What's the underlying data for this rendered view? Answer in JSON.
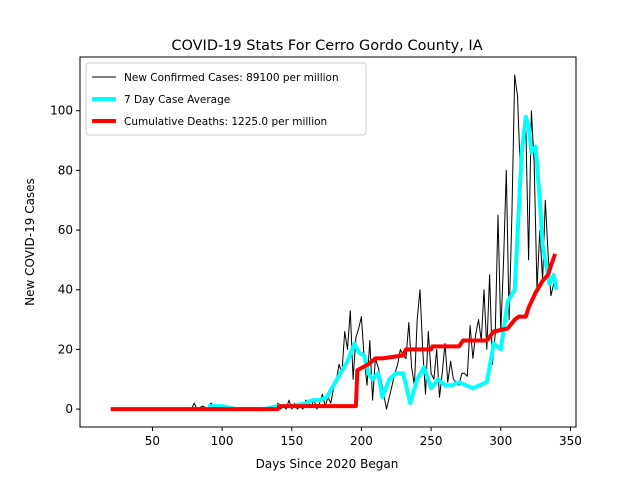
{
  "chart_data": {
    "type": "line",
    "title": "COVID-19 Stats For Cerro Gordo County, IA",
    "xlabel": "Days Since 2020 Began",
    "ylabel": "New COVID-19 Cases",
    "xlim": [
      -2,
      354
    ],
    "ylim": [
      -6,
      118
    ],
    "xticks": [
      50,
      100,
      150,
      200,
      250,
      300,
      350
    ],
    "yticks": [
      0,
      20,
      40,
      60,
      80,
      100
    ],
    "grid": false,
    "legend_position": "top-left",
    "series": [
      {
        "name": "New Confirmed Cases: 89100 per million",
        "color": "#000000",
        "style": "thin",
        "x": [
          20,
          40,
          60,
          78,
          80,
          82,
          86,
          90,
          92,
          94,
          96,
          98,
          100,
          104,
          110,
          120,
          130,
          138,
          140,
          142,
          144,
          146,
          148,
          150,
          152,
          154,
          156,
          158,
          160,
          162,
          164,
          166,
          168,
          170,
          172,
          174,
          176,
          178,
          180,
          182,
          184,
          186,
          188,
          190,
          192,
          194,
          196,
          198,
          200,
          202,
          204,
          206,
          208,
          210,
          212,
          214,
          216,
          218,
          220,
          222,
          224,
          226,
          228,
          230,
          232,
          234,
          236,
          238,
          240,
          242,
          244,
          246,
          248,
          250,
          252,
          254,
          256,
          258,
          260,
          262,
          264,
          266,
          268,
          270,
          272,
          274,
          276,
          278,
          280,
          282,
          284,
          286,
          288,
          290,
          292,
          294,
          296,
          298,
          300,
          302,
          304,
          306,
          308,
          310,
          312,
          314,
          316,
          318,
          320,
          322,
          324,
          326,
          328,
          330,
          332,
          334,
          336,
          338
        ],
        "y": [
          0,
          0,
          0,
          0,
          2,
          0,
          1,
          0,
          2,
          1,
          0,
          1,
          0,
          0,
          0,
          0,
          0,
          0,
          2,
          0,
          1,
          0,
          3,
          0,
          2,
          0,
          1,
          0,
          3,
          2,
          1,
          3,
          0,
          2,
          5,
          1,
          4,
          2,
          7,
          10,
          15,
          12,
          26,
          20,
          33,
          10,
          24,
          27,
          31,
          17,
          8,
          23,
          3,
          17,
          14,
          10,
          5,
          0,
          4,
          8,
          12,
          15,
          20,
          18,
          17,
          29,
          14,
          8,
          30,
          40,
          20,
          5,
          26,
          12,
          10,
          20,
          4,
          12,
          22,
          9,
          16,
          10,
          9,
          8,
          12,
          12,
          11,
          28,
          17,
          25,
          30,
          23,
          40,
          20,
          45,
          15,
          25,
          65,
          26,
          50,
          80,
          30,
          65,
          112,
          105,
          80,
          92,
          95,
          50,
          100,
          82,
          40,
          60,
          43,
          70,
          52,
          38,
          42
        ]
      },
      {
        "name": "7 Day Case Average",
        "color": "#00ffff",
        "style": "thick",
        "x": [
          90,
          100,
          110,
          120,
          130,
          140,
          150,
          160,
          165,
          170,
          175,
          180,
          185,
          190,
          195,
          198,
          202,
          205,
          208,
          212,
          215,
          220,
          225,
          230,
          235,
          240,
          245,
          250,
          255,
          260,
          265,
          270,
          275,
          280,
          285,
          290,
          295,
          300,
          305,
          310,
          315,
          318,
          320,
          322,
          325,
          328,
          330,
          335,
          338,
          340
        ],
        "y": [
          1,
          1,
          0,
          0,
          0,
          1,
          1,
          2,
          3,
          3,
          4,
          8,
          12,
          16,
          22,
          19,
          18,
          12,
          10,
          12,
          4,
          10,
          12,
          12,
          2,
          10,
          14,
          7,
          10,
          8,
          8,
          9,
          8,
          7,
          8,
          9,
          22,
          20,
          36,
          40,
          86,
          98,
          95,
          86,
          88,
          70,
          55,
          42,
          45,
          40
        ]
      },
      {
        "name": "Cumulative Deaths: 1225.0 per million",
        "color": "#ff0000",
        "style": "thick",
        "x": [
          20,
          140,
          141,
          196,
          197,
          205,
          210,
          215,
          230,
          232,
          250,
          251,
          270,
          273,
          290,
          295,
          305,
          310,
          313,
          318,
          320,
          325,
          330,
          334,
          336,
          339
        ],
        "y": [
          0,
          0,
          1,
          1,
          13,
          15,
          17,
          17,
          18,
          20,
          20,
          21,
          21,
          23,
          23,
          26,
          27,
          30,
          31,
          31,
          34,
          39,
          43,
          45,
          48,
          52
        ]
      }
    ]
  }
}
